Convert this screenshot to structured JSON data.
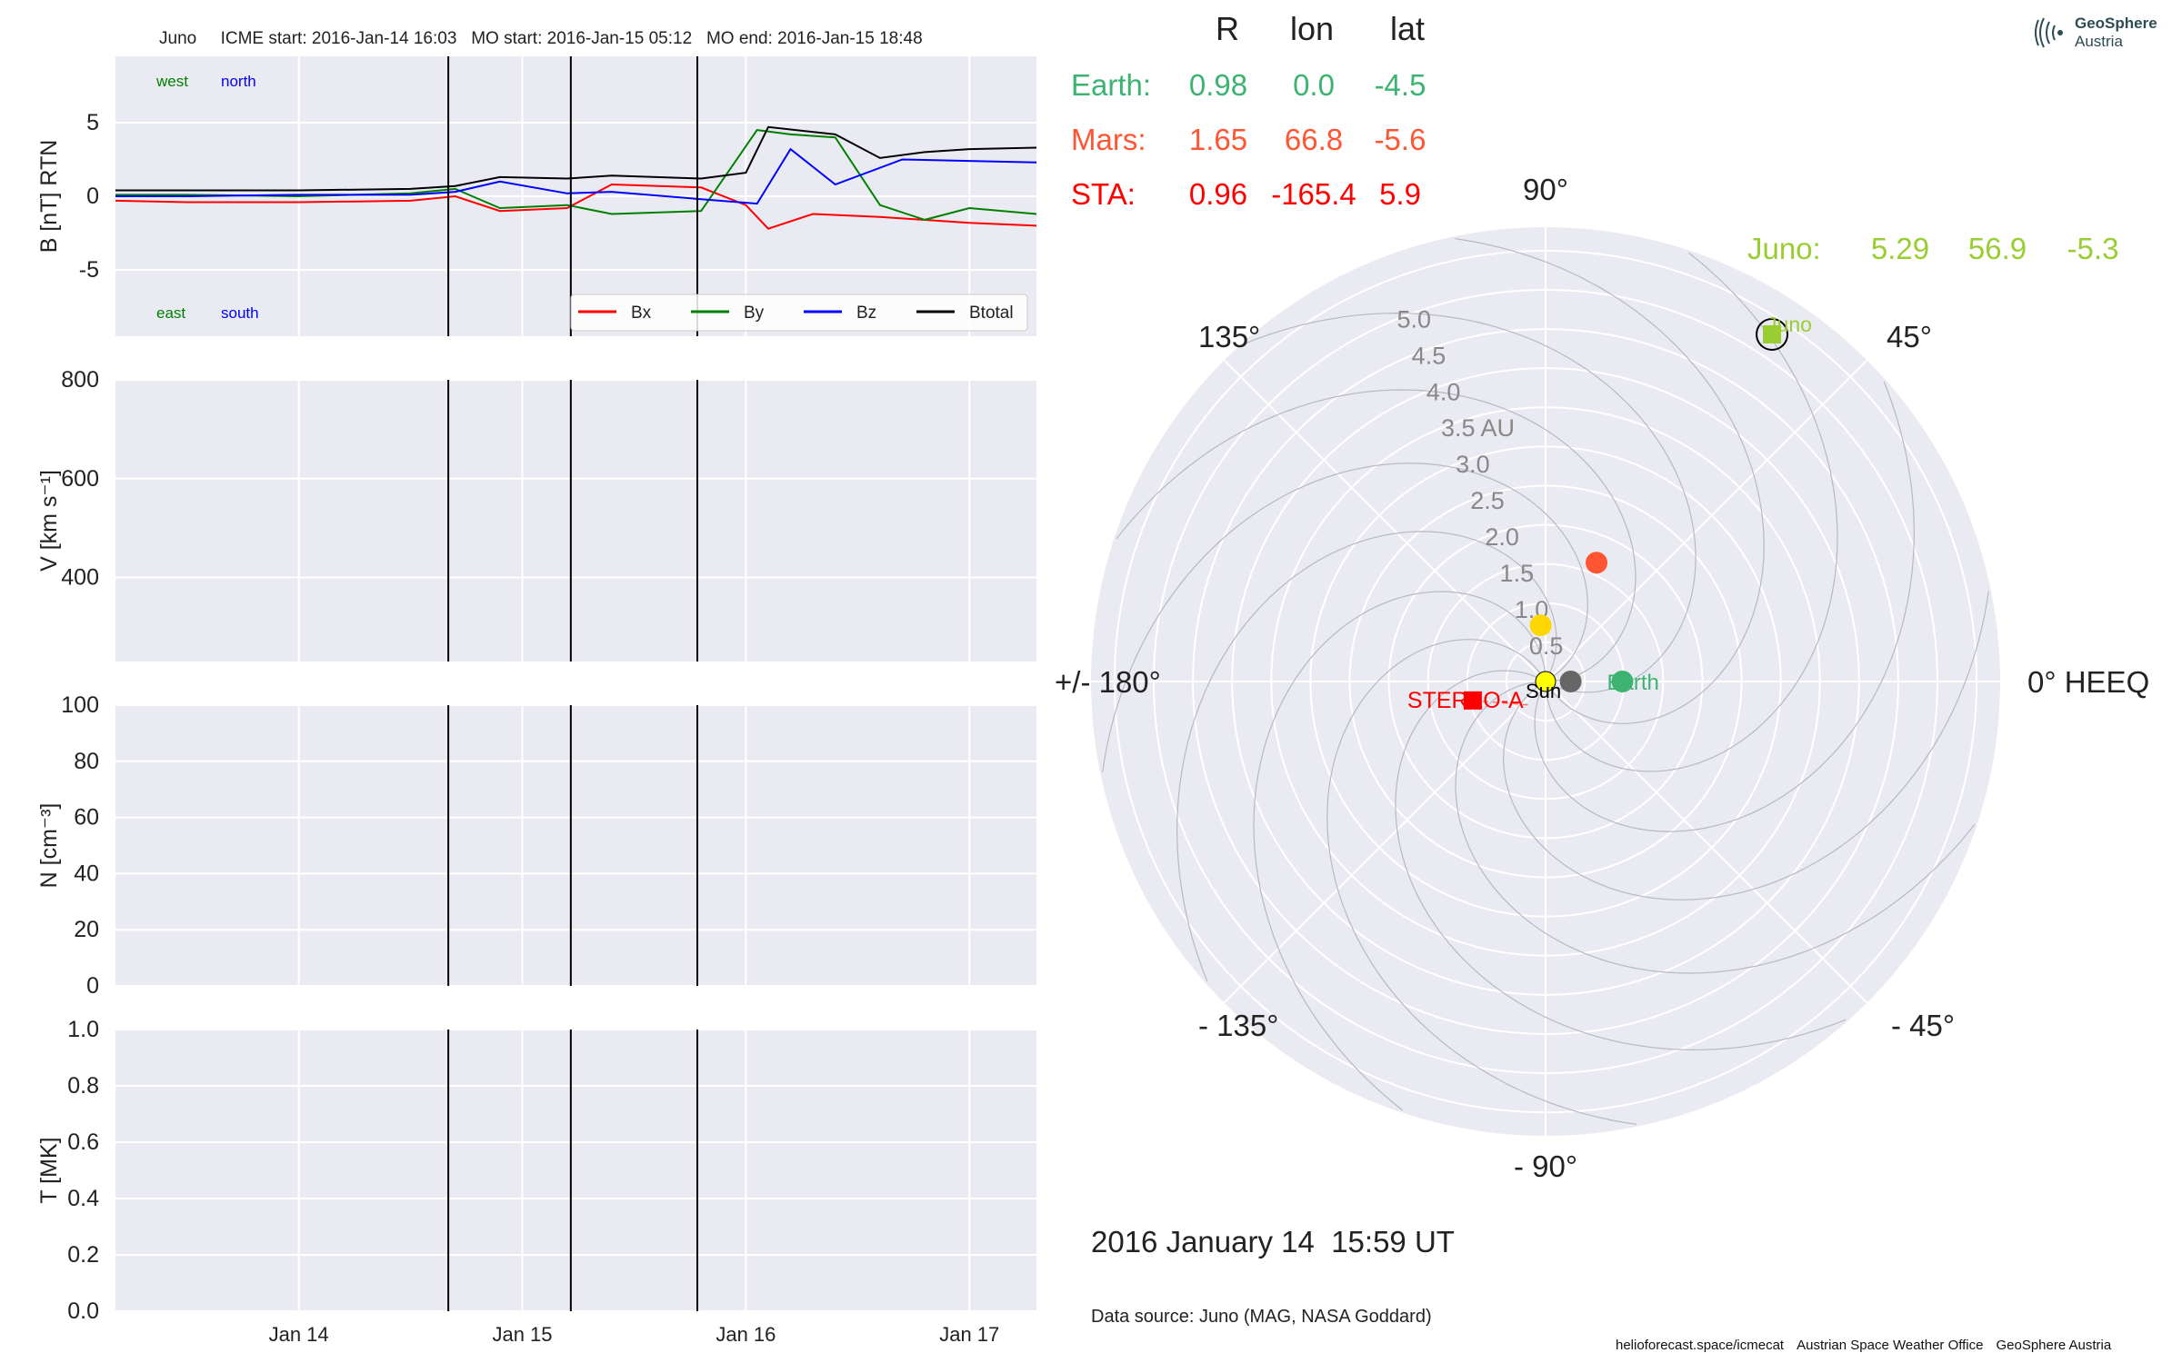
{
  "header": {
    "text": "Juno     ICME start: 2016-Jan-14 16:03   MO start: 2016-Jan-15 05:12   MO end: 2016-Jan-15 18:48"
  },
  "logo": {
    "name": "GeoSphere",
    "sub": "Austria"
  },
  "footer": {
    "items": [
      "helioforecast.space/icmecat",
      "Austrian Space Weather Office",
      "GeoSphere Austria"
    ]
  },
  "colors": {
    "panel_bg": "#eaeaf2",
    "Bx": "#ff0000",
    "By": "#008000",
    "Bz": "#0000ff",
    "Btotal": "#000000",
    "earth": "#3cb371",
    "mars": "#ff5533",
    "sta": "#ff0000",
    "juno": "#9acd32",
    "venus": "#ffd700",
    "mercury": "#666666",
    "sun": "#ffff00"
  },
  "chart_data": [
    {
      "type": "line",
      "panel": "magnetic field",
      "ylabel": "B [nT] RTN",
      "ylim": [
        -9.5,
        9.5
      ],
      "yticks": [
        -5,
        0,
        5
      ],
      "xlim_days": [
        13.18,
        17.3
      ],
      "xticks": [
        {
          "day": 14,
          "label": "Jan 14"
        },
        {
          "day": 15,
          "label": "Jan 15"
        },
        {
          "day": 16,
          "label": "Jan 16"
        },
        {
          "day": 17,
          "label": "Jan 17"
        }
      ],
      "event_lines": [
        {
          "label": "ICME start",
          "day": 14.669
        },
        {
          "label": "MO start",
          "day": 15.217
        },
        {
          "label": "MO end",
          "day": 15.783
        }
      ],
      "corner_labels": {
        "top_left": "west",
        "top_right": "north",
        "bottom_left": "east",
        "bottom_right": "south"
      },
      "legend": {
        "position": "lower-right",
        "entries": [
          "Bx",
          "By",
          "Bz",
          "Btotal"
        ]
      },
      "series": [
        {
          "name": "Bx",
          "points": [
            [
              13.18,
              -0.3
            ],
            [
              13.5,
              -0.4
            ],
            [
              14.0,
              -0.4
            ],
            [
              14.5,
              -0.3
            ],
            [
              14.7,
              0.0
            ],
            [
              14.9,
              -1.0
            ],
            [
              15.2,
              -0.8
            ],
            [
              15.4,
              0.8
            ],
            [
              15.8,
              0.6
            ],
            [
              16.0,
              -0.6
            ],
            [
              16.1,
              -2.2
            ],
            [
              16.3,
              -1.2
            ],
            [
              16.6,
              -1.4
            ],
            [
              17.0,
              -1.8
            ],
            [
              17.3,
              -2.0
            ]
          ]
        },
        {
          "name": "By",
          "points": [
            [
              13.18,
              0.1
            ],
            [
              13.5,
              0.1
            ],
            [
              14.0,
              0.0
            ],
            [
              14.5,
              0.2
            ],
            [
              14.7,
              0.5
            ],
            [
              14.9,
              -0.8
            ],
            [
              15.2,
              -0.6
            ],
            [
              15.4,
              -1.2
            ],
            [
              15.8,
              -1.0
            ],
            [
              16.05,
              4.5
            ],
            [
              16.2,
              4.2
            ],
            [
              16.4,
              4.0
            ],
            [
              16.6,
              -0.6
            ],
            [
              16.8,
              -1.6
            ],
            [
              17.0,
              -0.8
            ],
            [
              17.3,
              -1.2
            ]
          ]
        },
        {
          "name": "Bz",
          "points": [
            [
              13.18,
              0.0
            ],
            [
              13.5,
              0.0
            ],
            [
              14.0,
              0.1
            ],
            [
              14.5,
              0.1
            ],
            [
              14.7,
              0.3
            ],
            [
              14.9,
              1.0
            ],
            [
              15.2,
              0.2
            ],
            [
              15.4,
              0.3
            ],
            [
              15.8,
              -0.2
            ],
            [
              16.05,
              -0.5
            ],
            [
              16.2,
              3.2
            ],
            [
              16.4,
              0.8
            ],
            [
              16.7,
              2.5
            ],
            [
              17.0,
              2.4
            ],
            [
              17.3,
              2.3
            ]
          ]
        },
        {
          "name": "Btotal",
          "points": [
            [
              13.18,
              0.4
            ],
            [
              13.5,
              0.4
            ],
            [
              14.0,
              0.4
            ],
            [
              14.5,
              0.5
            ],
            [
              14.7,
              0.7
            ],
            [
              14.9,
              1.3
            ],
            [
              15.2,
              1.2
            ],
            [
              15.4,
              1.4
            ],
            [
              15.8,
              1.2
            ],
            [
              16.0,
              1.6
            ],
            [
              16.1,
              4.7
            ],
            [
              16.4,
              4.2
            ],
            [
              16.6,
              2.6
            ],
            [
              16.8,
              3.0
            ],
            [
              17.0,
              3.2
            ],
            [
              17.3,
              3.3
            ]
          ]
        }
      ]
    },
    {
      "type": "line",
      "panel": "speed",
      "ylabel": "V [km s⁻¹]",
      "ylim": [
        230,
        800
      ],
      "yticks": [
        400,
        600,
        800
      ],
      "series": []
    },
    {
      "type": "line",
      "panel": "density",
      "ylabel": "N [cm⁻³]",
      "ylim": [
        0,
        100
      ],
      "yticks": [
        0,
        20,
        40,
        60,
        80,
        100
      ],
      "series": []
    },
    {
      "type": "line",
      "panel": "temperature",
      "ylabel": "T [MK]",
      "ylim": [
        0,
        1
      ],
      "yticks": [
        0.0,
        0.2,
        0.4,
        0.6,
        0.8,
        1.0
      ],
      "tick_labels": [
        "0.0",
        "0.2",
        "0.4",
        "0.6",
        "0.8",
        "1.0"
      ],
      "series": []
    },
    {
      "type": "scatter",
      "panel": "polar orbit plot",
      "coordinate_system": "HEEQ",
      "rmax_au": 5.8,
      "radial_ticks": [
        {
          "r": 0.5,
          "label": "0.5"
        },
        {
          "r": 1.0,
          "label": "1.0"
        },
        {
          "r": 1.5,
          "label": "1.5"
        },
        {
          "r": 2.0,
          "label": "2.0"
        },
        {
          "r": 2.5,
          "label": "2.5"
        },
        {
          "r": 3.0,
          "label": "3.0"
        },
        {
          "r": 3.5,
          "label": "3.5 AU"
        },
        {
          "r": 4.0,
          "label": "4.0"
        },
        {
          "r": 4.5,
          "label": "4.5"
        },
        {
          "r": 5.0,
          "label": "5.0"
        }
      ],
      "angle_labels": [
        {
          "deg": 0,
          "label": "0° HEEQ"
        },
        {
          "deg": 45,
          "label": "45°"
        },
        {
          "deg": 90,
          "label": "90°"
        },
        {
          "deg": 135,
          "label": "135°"
        },
        {
          "deg": 180,
          "label": "+/- 180°"
        },
        {
          "deg": -135,
          "label": "- 135°"
        },
        {
          "deg": -90,
          "label": "- 90°"
        },
        {
          "deg": -45,
          "label": "- 45°"
        }
      ],
      "table_header": [
        "R",
        "lon",
        "lat"
      ],
      "bodies": [
        {
          "name": "Earth:",
          "R": "0.98",
          "lon": "0.0",
          "lat": "-4.5"
        },
        {
          "name": "Mars:",
          "R": "1.65",
          "lon": "66.8",
          "lat": "-5.6"
        },
        {
          "name": "STA:",
          "R": "0.96",
          "lon": "-165.4",
          "lat": "5.9"
        },
        {
          "name": "Juno:",
          "R": "5.29",
          "lon": "56.9",
          "lat": "-5.3"
        }
      ],
      "markers": [
        {
          "name": "Sun",
          "r": 0.0,
          "lon": 0,
          "label": "Sun"
        },
        {
          "name": "Mercury",
          "r": 0.32,
          "lon": 0
        },
        {
          "name": "Venus",
          "r": 0.72,
          "lon": 95
        },
        {
          "name": "Earth",
          "r": 0.98,
          "lon": 0.0,
          "label": "Earth"
        },
        {
          "name": "Mars",
          "r": 1.65,
          "lon": 66.8
        },
        {
          "name": "STEREO-A",
          "r": 0.96,
          "lon": -165.4,
          "label": "STEREO-A"
        },
        {
          "name": "Juno",
          "r": 5.29,
          "lon": 56.9,
          "label": "Juno"
        }
      ],
      "timestamp": "2016 January 14  15:59 UT",
      "data_source": "Data source: Juno (MAG, NASA Goddard)"
    }
  ]
}
